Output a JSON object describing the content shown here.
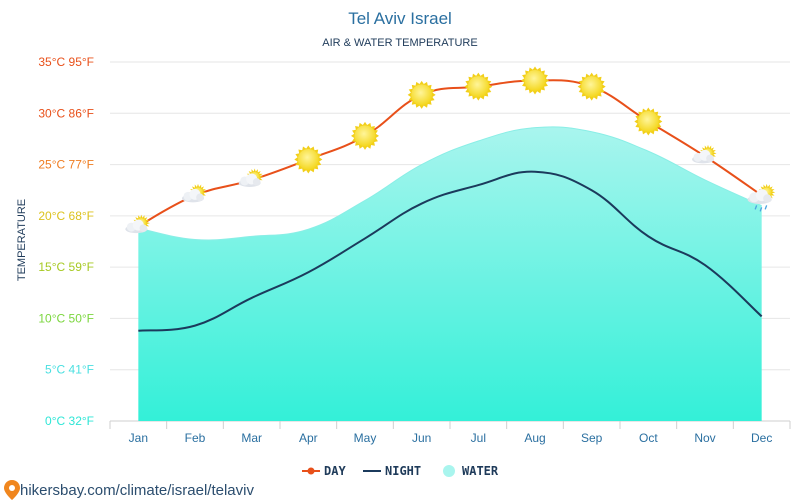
{
  "colors": {
    "day": "#e8501a",
    "night": "#1b3a5c",
    "water_top": "#a9f5ee",
    "water_bottom": "#33f0d8",
    "grid": "#e6e6e6",
    "tick_colors": [
      "#2ee6d6",
      "#49dfe0",
      "#7bd63e",
      "#a6c922",
      "#dcc21e",
      "#ef7d22",
      "#e8501a",
      "#e8501a"
    ]
  },
  "source": "hikersbay.com/climate/israel/telaviv",
  "chart_data": {
    "type": "line",
    "title": "Tel Aviv Israel",
    "subtitle": "AIR & WATER TEMPERATURE",
    "ylabel": "TEMPERATURE",
    "xlabel": "",
    "ylim": [
      0,
      35
    ],
    "grid": true,
    "legend_position": "bottom",
    "categories": [
      "Jan",
      "Feb",
      "Mar",
      "Apr",
      "May",
      "Jun",
      "Jul",
      "Aug",
      "Sep",
      "Oct",
      "Nov",
      "Dec"
    ],
    "y_tick_labels": [
      "0°C 32°F",
      "5°C 41°F",
      "10°C 50°F",
      "15°C 59°F",
      "20°C 68°F",
      "25°C 77°F",
      "30°C 86°F",
      "35°C 95°F"
    ],
    "y_tick_values": [
      0,
      5,
      10,
      15,
      20,
      25,
      30,
      35
    ],
    "series": [
      {
        "name": "DAY",
        "type": "line",
        "values": [
          19.0,
          22.0,
          23.5,
          25.5,
          27.8,
          31.8,
          32.6,
          33.2,
          32.6,
          29.2,
          25.8,
          22.0
        ]
      },
      {
        "name": "NIGHT",
        "type": "line",
        "values": [
          8.8,
          9.3,
          12.0,
          14.5,
          17.8,
          21.2,
          23.0,
          24.3,
          22.5,
          18.0,
          15.2,
          10.2
        ]
      },
      {
        "name": "WATER",
        "type": "area",
        "values": [
          18.8,
          17.7,
          18.0,
          18.7,
          21.5,
          25.0,
          27.3,
          28.6,
          28.2,
          26.3,
          23.5,
          21.0
        ]
      }
    ],
    "weather_icons": [
      "partly-cloudy-icon",
      "partly-cloudy-icon",
      "partly-cloudy-icon",
      "sun-icon",
      "sun-icon",
      "sun-icon",
      "sun-icon",
      "sun-icon",
      "sun-icon",
      "sun-icon",
      "partly-cloudy-icon",
      "cloud-rain-icon"
    ]
  }
}
